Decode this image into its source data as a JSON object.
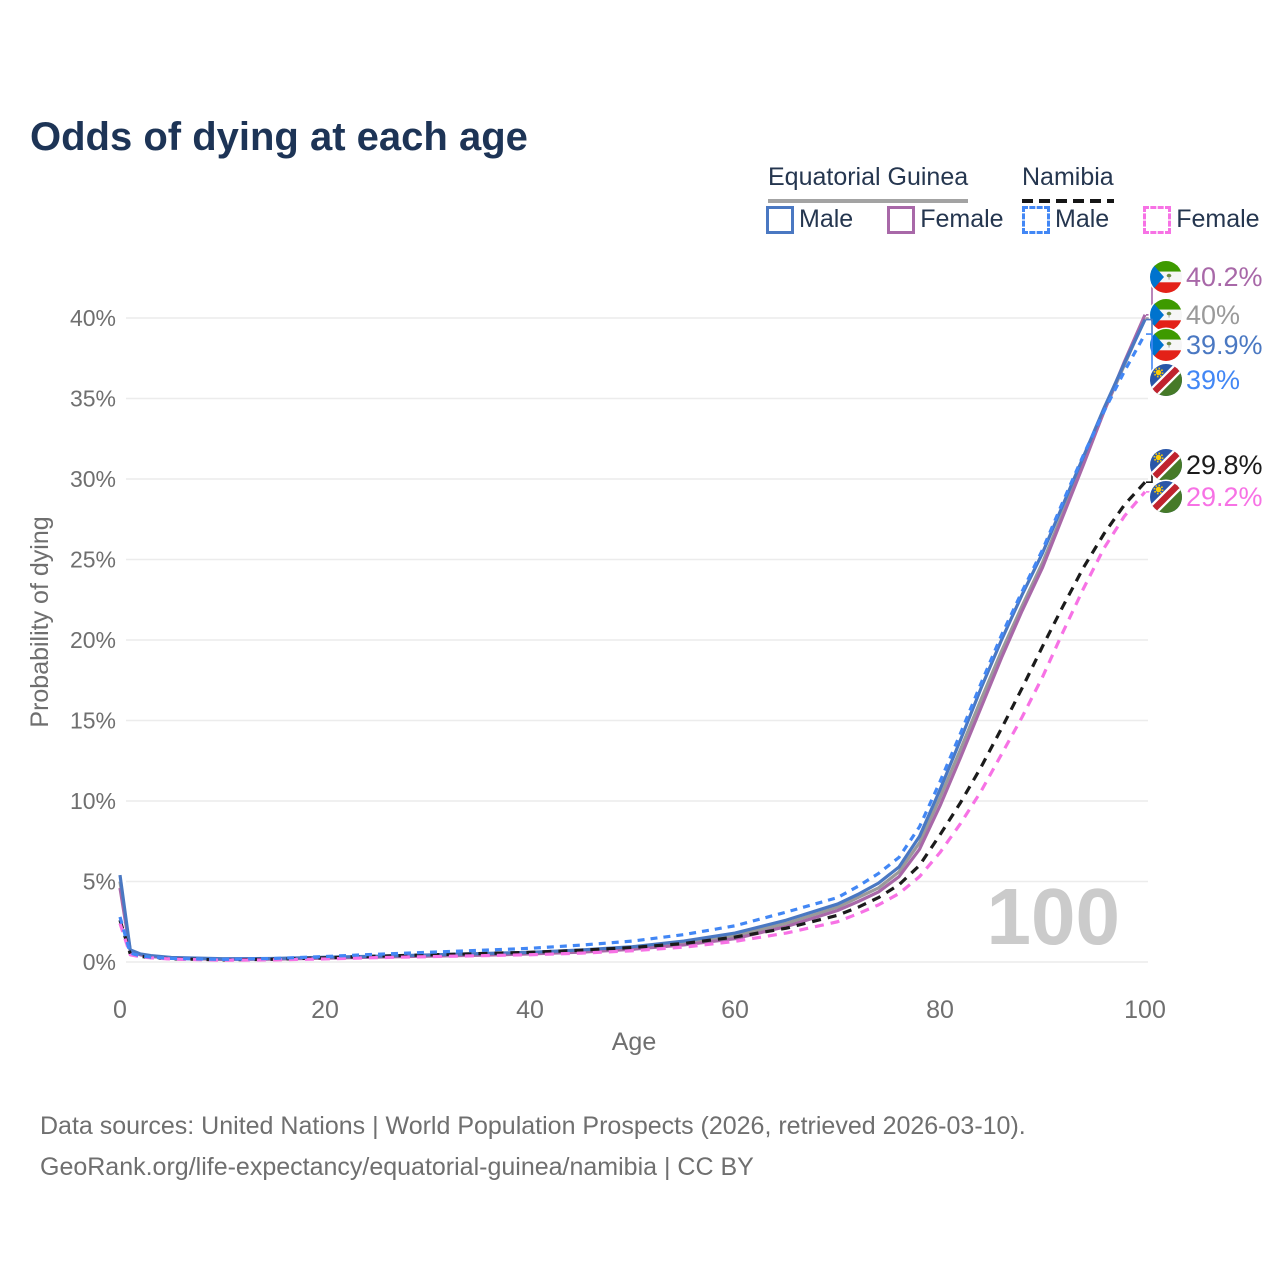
{
  "title": "Odds of dying at each age",
  "legend": {
    "groups": [
      {
        "country": "Equatorial Guinea",
        "line_style": "solid",
        "items": [
          {
            "label": "Male",
            "color_key": "eq_male"
          },
          {
            "label": "Female",
            "color_key": "eq_female"
          }
        ]
      },
      {
        "country": "Namibia",
        "line_style": "dashed",
        "items": [
          {
            "label": "Male",
            "color_key": "na_male"
          },
          {
            "label": "Female",
            "color_key": "na_female"
          }
        ]
      }
    ]
  },
  "colors": {
    "eq_male": "#4a78c2",
    "eq_female": "#a868a8",
    "eq_total": "#9a9a9a",
    "na_male": "#4287f5",
    "na_female": "#f772e5",
    "na_total": "#1b1b1b",
    "title_text": "#1d3456",
    "axis_text": "#6f6f6f",
    "gridline": "#ececec",
    "watermark": "#cbcbcb"
  },
  "chart_data": {
    "type": "line",
    "title": "Odds of dying at each age",
    "xlabel": "Age",
    "ylabel": "Probability of dying",
    "xlim": [
      0,
      100
    ],
    "ylim_pct": [
      0,
      42
    ],
    "x_ticks": [
      0,
      20,
      40,
      60,
      80,
      100
    ],
    "y_ticks": [
      "0%",
      "5%",
      "10%",
      "15%",
      "20%",
      "25%",
      "30%",
      "35%",
      "40%"
    ],
    "grid": "horizontal-only",
    "legend_position": "top-right",
    "watermark": "100",
    "ages": [
      0,
      1,
      2,
      3,
      5,
      10,
      15,
      20,
      25,
      30,
      35,
      40,
      45,
      50,
      55,
      60,
      65,
      70,
      72,
      74,
      76,
      78,
      80,
      82,
      84,
      86,
      88,
      90,
      92,
      94,
      96,
      98,
      100
    ],
    "series": [
      {
        "name": "Equatorial Guinea Both sexes",
        "country": "Equatorial Guinea",
        "color_key": "eq_total",
        "dash": "",
        "values_pct": [
          5.0,
          0.7,
          0.47,
          0.37,
          0.26,
          0.18,
          0.2,
          0.27,
          0.33,
          0.4,
          0.47,
          0.55,
          0.68,
          0.87,
          1.18,
          1.62,
          2.4,
          3.4,
          4.0,
          4.6,
          5.6,
          7.4,
          10.2,
          13.2,
          16.3,
          19.3,
          22.1,
          24.8,
          27.9,
          31.0,
          34.2,
          37.1,
          40.0
        ]
      },
      {
        "name": "Equatorial Guinea Female",
        "country": "Equatorial Guinea",
        "color_key": "eq_female",
        "dash": "",
        "values_pct": [
          4.6,
          0.65,
          0.44,
          0.34,
          0.24,
          0.16,
          0.18,
          0.24,
          0.3,
          0.36,
          0.42,
          0.5,
          0.61,
          0.79,
          1.06,
          1.45,
          2.2,
          3.2,
          3.75,
          4.35,
          5.3,
          7.0,
          9.7,
          12.7,
          15.8,
          18.9,
          21.8,
          24.5,
          27.7,
          30.9,
          34.2,
          37.3,
          40.2
        ]
      },
      {
        "name": "Equatorial Guinea Male",
        "country": "Equatorial Guinea",
        "color_key": "eq_male",
        "dash": "",
        "values_pct": [
          5.4,
          0.75,
          0.5,
          0.4,
          0.28,
          0.2,
          0.22,
          0.3,
          0.36,
          0.44,
          0.52,
          0.6,
          0.75,
          0.95,
          1.3,
          1.8,
          2.6,
          3.6,
          4.2,
          4.9,
          5.9,
          7.8,
          10.7,
          13.8,
          17.0,
          20.0,
          22.8,
          25.4,
          28.4,
          31.4,
          34.4,
          37.2,
          39.9
        ]
      },
      {
        "name": "Namibia Both sexes",
        "country": "Namibia",
        "color_key": "na_total",
        "dash": "9 7",
        "values_pct": [
          2.6,
          0.5,
          0.35,
          0.28,
          0.2,
          0.13,
          0.17,
          0.26,
          0.36,
          0.44,
          0.52,
          0.6,
          0.73,
          0.9,
          1.15,
          1.55,
          2.1,
          2.9,
          3.4,
          4.0,
          4.8,
          6.0,
          7.9,
          9.9,
          12.1,
          14.5,
          17.0,
          19.6,
          22.1,
          24.5,
          26.6,
          28.4,
          29.8
        ]
      },
      {
        "name": "Namibia Female",
        "country": "Namibia",
        "color_key": "na_female",
        "dash": "9 7",
        "values_pct": [
          2.4,
          0.45,
          0.32,
          0.26,
          0.18,
          0.11,
          0.13,
          0.19,
          0.27,
          0.33,
          0.39,
          0.45,
          0.55,
          0.7,
          0.92,
          1.28,
          1.8,
          2.5,
          3.0,
          3.55,
          4.25,
          5.3,
          6.8,
          8.6,
          10.6,
          12.9,
          15.2,
          17.7,
          20.5,
          23.2,
          25.7,
          27.7,
          29.2
        ]
      },
      {
        "name": "Namibia Male",
        "country": "Namibia",
        "color_key": "na_male",
        "dash": "7 6",
        "values_pct": [
          2.8,
          0.55,
          0.38,
          0.3,
          0.22,
          0.16,
          0.22,
          0.34,
          0.48,
          0.6,
          0.72,
          0.85,
          1.05,
          1.3,
          1.7,
          2.25,
          3.1,
          4.0,
          4.7,
          5.5,
          6.5,
          8.4,
          11.2,
          14.2,
          17.3,
          20.3,
          23.0,
          25.6,
          28.6,
          31.5,
          34.2,
          36.7,
          39.0
        ]
      }
    ],
    "end_labels": [
      {
        "text": "40.2%",
        "value_pct": 40.2,
        "flag": "gq",
        "series": "Equatorial Guinea Female",
        "color_key": "eq_female"
      },
      {
        "text": "40%",
        "value_pct": 40.0,
        "flag": "gq",
        "series": "Equatorial Guinea Both sexes",
        "color_key": "eq_total"
      },
      {
        "text": "39.9%",
        "value_pct": 39.9,
        "flag": "gq",
        "series": "Equatorial Guinea Male",
        "color_key": "eq_male"
      },
      {
        "text": "39%",
        "value_pct": 39.0,
        "flag": "na",
        "series": "Namibia Male",
        "color_key": "na_male"
      },
      {
        "text": "29.8%",
        "value_pct": 29.8,
        "flag": "na",
        "series": "Namibia Both sexes",
        "color_key": "na_total"
      },
      {
        "text": "29.2%",
        "value_pct": 29.2,
        "flag": "na",
        "series": "Namibia Female",
        "color_key": "na_female"
      }
    ]
  },
  "footer": {
    "line1": "Data sources: United Nations | World Population Prospects (2026, retrieved 2026-03-10).",
    "line2": "GeoRank.org/life-expectancy/equatorial-guinea/namibia | CC BY"
  }
}
